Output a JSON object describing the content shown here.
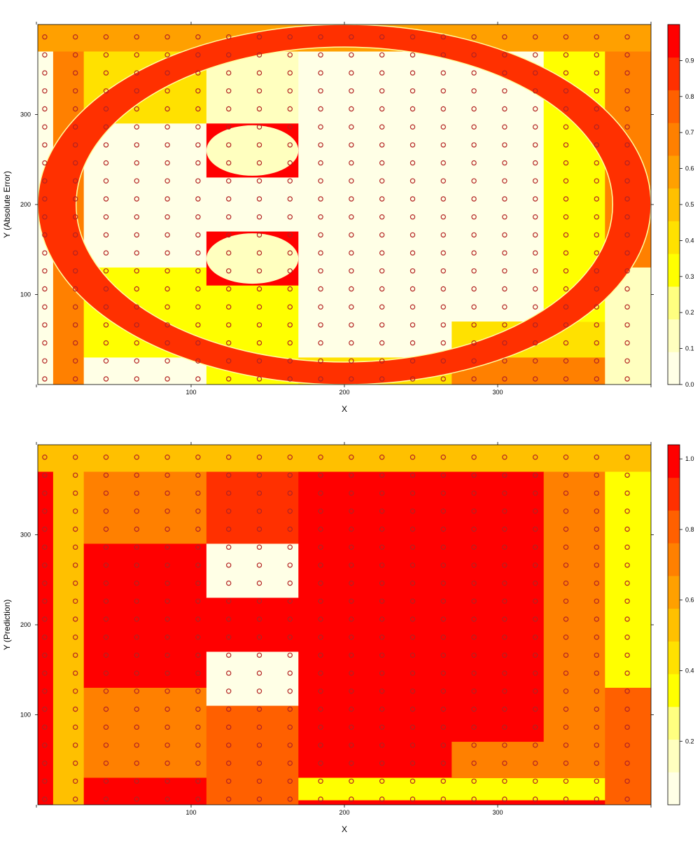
{
  "colors": {
    "scale": [
      "#FFFFE6",
      "#FFFFBF",
      "#FFFF80",
      "#FFFF00",
      "#FFE100",
      "#FFC000",
      "#FFA000",
      "#FF8000",
      "#FF6000",
      "#FF3000",
      "#FF0000"
    ],
    "background": "#FFFFE6",
    "point_stroke": "#B22222",
    "ellipse_stroke": "#FFFFA0"
  },
  "chart_data": [
    {
      "type": "heatmap",
      "title": "",
      "xlabel": "X",
      "ylabel": "Y    (Absolute Error)",
      "xlim": [
        0,
        400
      ],
      "ylim": [
        0,
        400
      ],
      "x_ticks": [
        100,
        200,
        300
      ],
      "y_ticks": [
        100,
        200,
        300
      ],
      "colorbar": {
        "min": 0.0,
        "max": 1.0,
        "ticks": [
          0.0,
          0.1,
          0.2,
          0.3,
          0.4,
          0.5,
          0.6,
          0.7,
          0.8,
          0.9
        ]
      },
      "grid_points": {
        "x_start": 0,
        "x_end": 380,
        "x_step": 20,
        "y_start": 0,
        "y_end": 380,
        "y_step": 20
      },
      "cells": [
        {
          "x": [
            0,
            400
          ],
          "y": [
            370,
            400
          ],
          "value": 0.55
        },
        {
          "x": [
            0,
            10
          ],
          "y": [
            0,
            370
          ],
          "value": 0.02
        },
        {
          "x": [
            10,
            30
          ],
          "y": [
            0,
            370
          ],
          "value": 0.65
        },
        {
          "x": [
            30,
            110
          ],
          "y": [
            290,
            370
          ],
          "value": 0.45
        },
        {
          "x": [
            30,
            110
          ],
          "y": [
            130,
            290
          ],
          "value": 0.02
        },
        {
          "x": [
            30,
            110
          ],
          "y": [
            30,
            130
          ],
          "value": 0.3
        },
        {
          "x": [
            30,
            110
          ],
          "y": [
            0,
            30
          ],
          "value": 0.02
        },
        {
          "x": [
            110,
            170
          ],
          "y": [
            290,
            370
          ],
          "value": 0.12
        },
        {
          "x": [
            110,
            170
          ],
          "y": [
            230,
            290
          ],
          "value": 0.95
        },
        {
          "x": [
            110,
            170
          ],
          "y": [
            170,
            230
          ],
          "value": 0.02
        },
        {
          "x": [
            110,
            170
          ],
          "y": [
            110,
            170
          ],
          "value": 0.95
        },
        {
          "x": [
            110,
            170
          ],
          "y": [
            0,
            110
          ],
          "value": 0.3
        },
        {
          "x": [
            170,
            330
          ],
          "y": [
            30,
            370
          ],
          "value": 0.02
        },
        {
          "x": [
            170,
            270
          ],
          "y": [
            0,
            30
          ],
          "value": 0.45
        },
        {
          "x": [
            270,
            370
          ],
          "y": [
            30,
            70
          ],
          "value": 0.45
        },
        {
          "x": [
            270,
            370
          ],
          "y": [
            0,
            30
          ],
          "value": 0.65
        },
        {
          "x": [
            330,
            370
          ],
          "y": [
            70,
            370
          ],
          "value": 0.3
        },
        {
          "x": [
            370,
            400
          ],
          "y": [
            130,
            370
          ],
          "value": 0.65
        },
        {
          "x": [
            370,
            400
          ],
          "y": [
            0,
            130
          ],
          "value": 0.12
        }
      ],
      "ring": {
        "cx": 200,
        "cy": 200,
        "outer_rx": 200,
        "outer_ry": 200,
        "inner_rx": 175,
        "inner_ry": 175,
        "value": 0.9
      },
      "holes": [
        {
          "cx": 140,
          "cy": 260,
          "rx": 30,
          "ry": 28,
          "value": 0.12
        },
        {
          "cx": 140,
          "cy": 140,
          "rx": 30,
          "ry": 28,
          "value": 0.12
        }
      ]
    },
    {
      "type": "heatmap",
      "title": "",
      "xlabel": "X",
      "ylabel": "Y    (Prediction)",
      "xlim": [
        0,
        400
      ],
      "ylim": [
        0,
        400
      ],
      "x_ticks": [
        100,
        200,
        300
      ],
      "y_ticks": [
        100,
        200,
        300
      ],
      "colorbar": {
        "min": 0.02,
        "max": 1.04,
        "ticks": [
          0.2,
          0.4,
          0.6,
          0.8,
          1.0
        ]
      },
      "grid_points": {
        "x_start": 0,
        "x_end": 380,
        "x_step": 20,
        "y_start": 0,
        "y_end": 380,
        "y_step": 20
      },
      "cells": [
        {
          "x": [
            0,
            400
          ],
          "y": [
            370,
            400
          ],
          "value": 0.55
        },
        {
          "x": [
            0,
            10
          ],
          "y": [
            0,
            370
          ],
          "value": 0.98
        },
        {
          "x": [
            10,
            30
          ],
          "y": [
            0,
            370
          ],
          "value": 0.55
        },
        {
          "x": [
            30,
            110
          ],
          "y": [
            290,
            370
          ],
          "value": 0.72
        },
        {
          "x": [
            30,
            110
          ],
          "y": [
            130,
            290
          ],
          "value": 1.0
        },
        {
          "x": [
            30,
            110
          ],
          "y": [
            30,
            130
          ],
          "value": 0.72
        },
        {
          "x": [
            30,
            110
          ],
          "y": [
            0,
            30
          ],
          "value": 1.0
        },
        {
          "x": [
            110,
            170
          ],
          "y": [
            290,
            370
          ],
          "value": 0.9
        },
        {
          "x": [
            110,
            170
          ],
          "y": [
            230,
            290
          ],
          "value": 0.05
        },
        {
          "x": [
            110,
            170
          ],
          "y": [
            170,
            230
          ],
          "value": 1.0
        },
        {
          "x": [
            110,
            170
          ],
          "y": [
            110,
            170
          ],
          "value": 0.05
        },
        {
          "x": [
            110,
            170
          ],
          "y": [
            0,
            110
          ],
          "value": 0.85
        },
        {
          "x": [
            170,
            330
          ],
          "y": [
            70,
            370
          ],
          "value": 0.96
        },
        {
          "x": [
            170,
            270
          ],
          "y": [
            30,
            70
          ],
          "value": 1.0
        },
        {
          "x": [
            170,
            370
          ],
          "y": [
            5,
            30
          ],
          "value": 0.38
        },
        {
          "x": [
            170,
            370
          ],
          "y": [
            0,
            5
          ],
          "value": 1.0
        },
        {
          "x": [
            270,
            370
          ],
          "y": [
            30,
            70
          ],
          "value": 0.72
        },
        {
          "x": [
            330,
            370
          ],
          "y": [
            70,
            370
          ],
          "value": 0.72
        },
        {
          "x": [
            370,
            400
          ],
          "y": [
            130,
            370
          ],
          "value": 0.36
        },
        {
          "x": [
            370,
            400
          ],
          "y": [
            0,
            130
          ],
          "value": 0.85
        }
      ]
    }
  ]
}
